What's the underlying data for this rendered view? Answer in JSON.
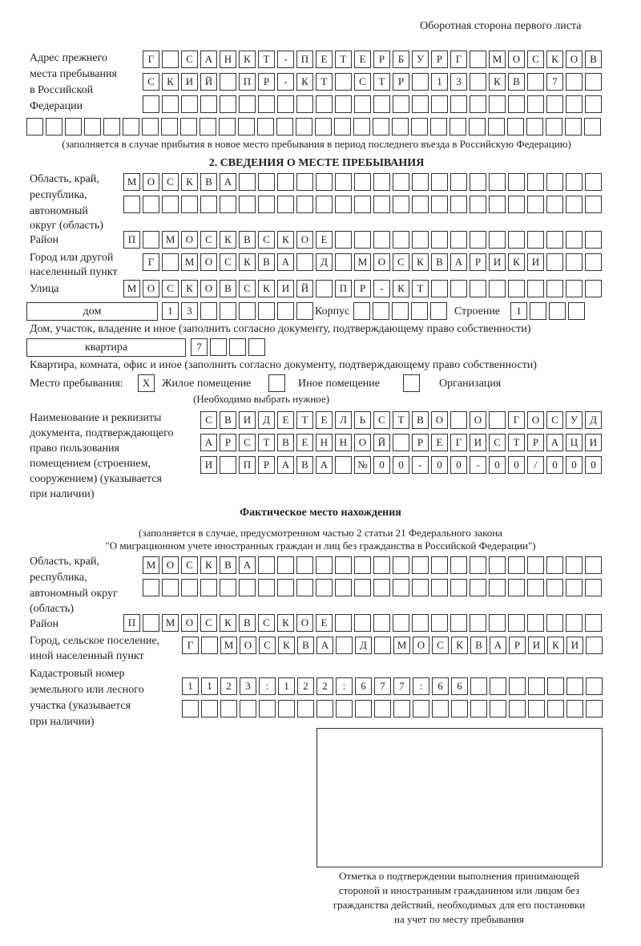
{
  "page_header": "Оборотная сторона первого листа",
  "previous_address": {
    "label": [
      "Адрес прежнего",
      "места пребывания",
      "в Российской",
      "Федерации"
    ],
    "rows": [
      "Г САНКТ-ПЕТЕРБУРГ МОСКОВ",
      "СКИЙ ПР-КТ СТР 13 КВ 7  ",
      "",
      ""
    ],
    "note": "(заполняется в случае прибытия в новое место пребывания в период последнего въезда в Российскую Федерацию)"
  },
  "section2": {
    "title": "2. СВЕДЕНИЯ О МЕСТЕ ПРЕБЫВАНИЯ",
    "region_label": [
      "Область, край,",
      "республика,",
      "автономный",
      "округ (область)"
    ],
    "region_rows": [
      "МОСКВА",
      ""
    ],
    "district_label": "Район",
    "district": "П МОСКВСКОЕ",
    "city_label": [
      "Город или другой",
      "населенный пункт"
    ],
    "city": "Г МОСКВА Д МОСКВАРИКИ",
    "street_label": "Улица",
    "street": "МОСКОВСКИЙ ПР-КТ",
    "house_type": "дом",
    "house_number": "13",
    "korpus_label": "Корпус",
    "korpus": "",
    "building_label": "Строение",
    "building": "1",
    "house_note": "Дом, участок, владение и иное (заполнить согласно документу, подтверждающему право собственности)",
    "apt_type": "квартира",
    "apt_number": "7",
    "apt_note": "Квартира, комната, офис и иное (заполнить согласно документу, подтверждающему право собственности)",
    "stay_label": "Место пребывания:",
    "stay_options": [
      {
        "label": "Жилое помещение",
        "mark": "Х"
      },
      {
        "label": "Иное помещение",
        "mark": ""
      },
      {
        "label": "Организация",
        "mark": ""
      }
    ],
    "stay_note": "(Необходимо выбрать нужное)",
    "doc_label": [
      "Наименование и реквизиты",
      "документа, подтверждающего",
      "право пользования",
      "помещением (строением,",
      "сооружением) (указывается",
      "при наличии)"
    ],
    "doc_rows": [
      "СВИДЕТЕЛЬСТВО О ГОСУД",
      "АРСТВЕННОЙ РЕГИСТРАЦИ",
      "И ПРАВА №00-00-00/000"
    ]
  },
  "actual": {
    "title": "Фактическое место нахождения",
    "note": [
      "(заполняется в случае, предусмотренном частью 2 статьи 21 Федерального закона",
      "\"О миграционном учете иностранных граждан и лиц без гражданства в Российской Федерации\")"
    ],
    "region_label": [
      "Область, край,",
      "республика,",
      "автономный округ",
      "(область)"
    ],
    "region_rows": [
      "МОСКВА",
      ""
    ],
    "district_label": "Район",
    "district": "П МОСКВСКОЕ",
    "city_label": [
      "Город, сельское поселение,",
      "иной населенный пункт"
    ],
    "city": "Г МОСКВА Д МОСКВАРИКИ",
    "cadastre_label": [
      "Кадастровый номер",
      "земельного или лесного",
      "участка (указывается",
      "при наличии)"
    ],
    "cadastre_rows": [
      "1123:122:677:66",
      ""
    ]
  },
  "confirmation": {
    "caption": [
      "Отметка о подтверждении выполнения принимающей",
      "стороной и иностранным гражданином или лицом без",
      "гражданства действий, необходимых для его постановки",
      "на учет по месту пребывания"
    ]
  }
}
